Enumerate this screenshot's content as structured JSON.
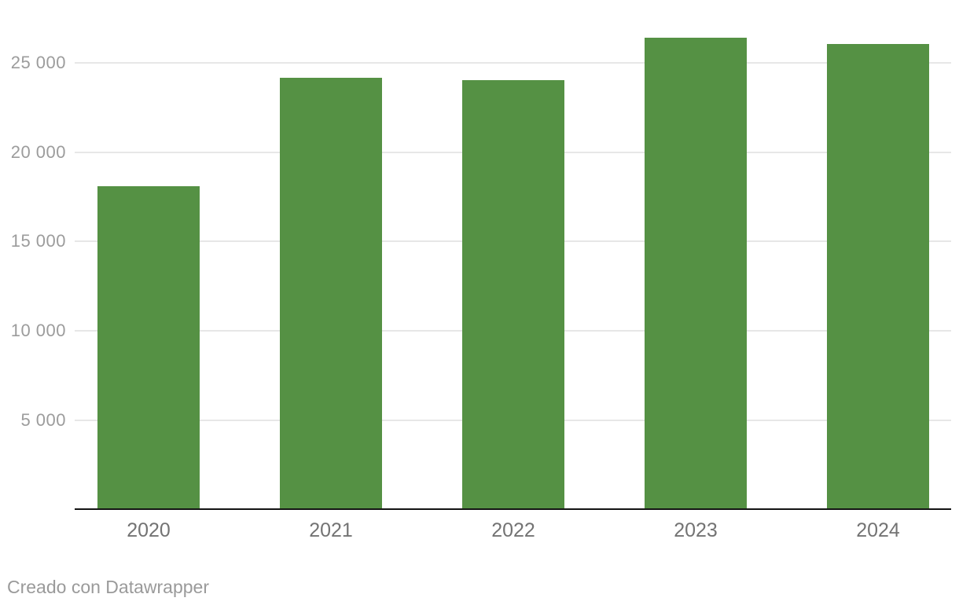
{
  "chart_data": {
    "type": "bar",
    "categories": [
      "2020",
      "2021",
      "2022",
      "2023",
      "2024"
    ],
    "values": [
      18100,
      24150,
      24000,
      26400,
      26050
    ],
    "yticks": [
      5000,
      10000,
      15000,
      20000,
      25000
    ],
    "ytick_labels": [
      "5 000",
      "10 000",
      "15 000",
      "20 000",
      "25 000"
    ],
    "ylim": [
      0,
      28500
    ],
    "grid": true,
    "legend": "none",
    "title": "",
    "xlabel": "",
    "ylabel": "",
    "bar_color": "#559144"
  },
  "footer": {
    "credit": "Creado con Datawrapper"
  },
  "colors": {
    "background": "#ffffff",
    "gridline": "#e7e7e7",
    "axis_line": "#141414",
    "ytick_text": "#9c9c9c",
    "xtick_text": "#737373",
    "credit_text": "#9a9a9a"
  }
}
